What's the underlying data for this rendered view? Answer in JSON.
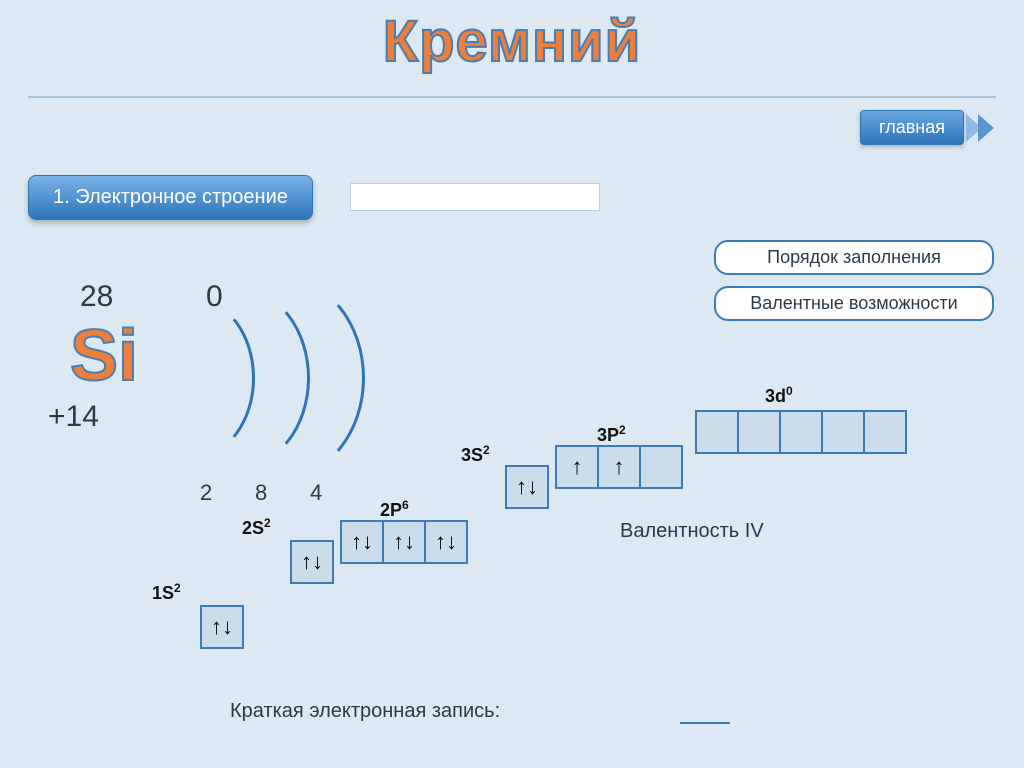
{
  "title": "Кремний",
  "nav_label": "главная",
  "section_label": "1. Электронное строение",
  "side_buttons": {
    "b1": "Порядок заполнения",
    "b2": "Валентные возможности"
  },
  "atom": {
    "symbol": "Si",
    "mass": "28",
    "zero": "0",
    "charge": "+14",
    "shells": {
      "n1": "2",
      "n2": "8",
      "n3": "4"
    }
  },
  "orbitals": {
    "labels": {
      "1s": "1S",
      "2s": "2S",
      "2p": "2P",
      "3s": "3S",
      "3p": "3P",
      "3d": "3d"
    },
    "sups": {
      "1s": "2",
      "2s": "2",
      "2p": "6",
      "3s": "2",
      "3p": "2",
      "3d": "0"
    },
    "arrows": {
      "1s": [
        "↑↓"
      ],
      "2s": [
        "↑↓"
      ],
      "2p": [
        "↑↓",
        "↑↓",
        "↑↓"
      ],
      "3s": [
        "↑↓"
      ],
      "3p": [
        "↑",
        "↑",
        ""
      ],
      "3d": [
        "",
        "",
        "",
        "",
        ""
      ]
    }
  },
  "valence_text": "Валентность IV",
  "bottom_text": "Краткая электронная запись:",
  "colors": {
    "bg": "#dde9f2",
    "accent": "#2d74b8",
    "box_fill": "#cbdceb",
    "orange": "#ef7e3a"
  }
}
